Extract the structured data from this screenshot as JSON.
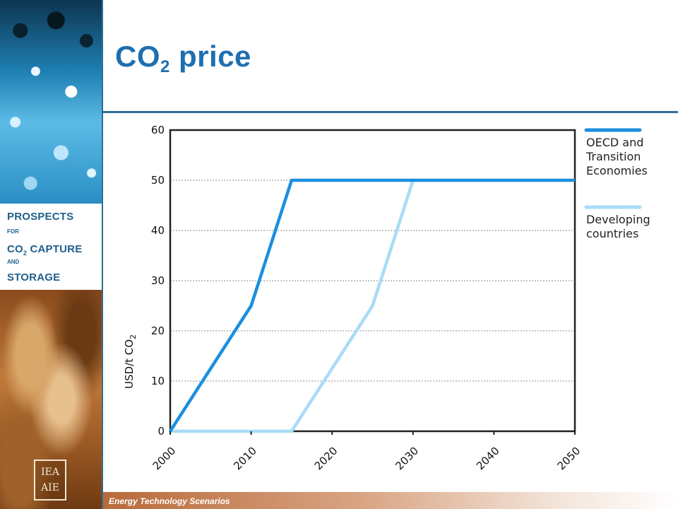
{
  "slide": {
    "title_main": "CO",
    "title_sub": "2",
    "title_rest": " price",
    "footer": "Energy Technology Scenarios"
  },
  "sidebar": {
    "line1": "PROSPECTS",
    "line2": "FOR",
    "line3_main": "CO",
    "line3_sub": "2",
    "line3_rest": " CAPTURE",
    "line4": "AND",
    "line5": "STORAGE",
    "logo_top": "IEA",
    "logo_bottom": "AIE"
  },
  "colors": {
    "oecd": "#1b8fe0",
    "developing": "#a8dcf7",
    "title": "#1f6fb0",
    "rule": "#2d6f96"
  },
  "chart_data": {
    "type": "line",
    "ylabel_main": "USD/t CO",
    "ylabel_sub": "2",
    "xlim": [
      2000,
      2050
    ],
    "ylim": [
      0,
      60
    ],
    "xticks": [
      2000,
      2010,
      2020,
      2030,
      2040,
      2050
    ],
    "yticks": [
      0,
      10,
      20,
      30,
      40,
      50,
      60
    ],
    "grid": "horizontal dotted",
    "legend_position": "right",
    "series": [
      {
        "name": "OECD and Transition Economies",
        "name_lines": [
          "OECD and",
          "Transition",
          "Economies"
        ],
        "x": [
          2000,
          2010,
          2015,
          2050
        ],
        "y": [
          0,
          25,
          50,
          50
        ]
      },
      {
        "name": "Developing countries",
        "name_lines": [
          "Developing",
          "countries"
        ],
        "x": [
          2000,
          2015,
          2025,
          2030,
          2050
        ],
        "y": [
          0,
          0,
          25,
          50,
          50
        ]
      }
    ]
  }
}
